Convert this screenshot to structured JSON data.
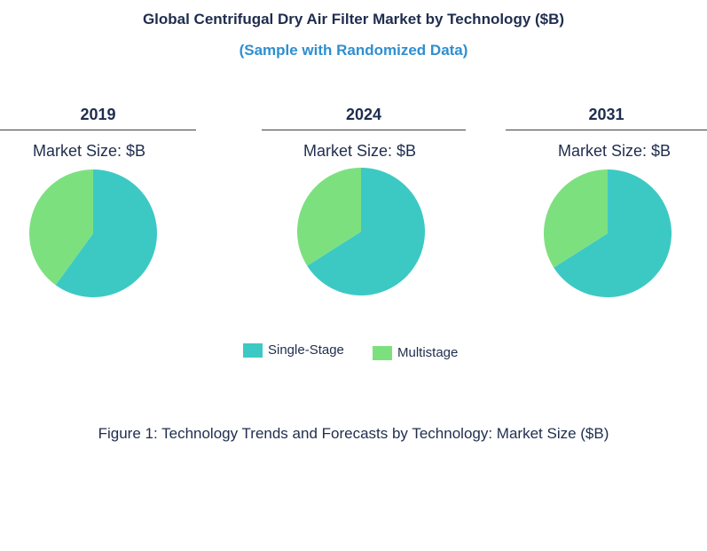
{
  "title": "Global Centrifugal Dry Air Filter Market by Technology ($B)",
  "subtitle": "(Sample with Randomized Data)",
  "caption": "Figure 1: Technology Trends and Forecasts by Technology: Market Size ($B)",
  "colors": {
    "single_stage": "#3cc9c4",
    "multistage": "#7de07f"
  },
  "chart_data": [
    {
      "type": "pie",
      "title": "2019",
      "subtitle": "Market Size: $B",
      "labels": [
        "Single-Stage",
        "Multistage"
      ],
      "values": [
        60,
        40
      ]
    },
    {
      "type": "pie",
      "title": "2024",
      "subtitle": "Market Size: $B",
      "labels": [
        "Single-Stage",
        "Multistage"
      ],
      "values": [
        66,
        34
      ]
    },
    {
      "type": "pie",
      "title": "2031",
      "subtitle": "Market Size: $B",
      "labels": [
        "Single-Stage",
        "Multistage"
      ],
      "values": [
        66,
        34
      ]
    }
  ],
  "legend": [
    {
      "label": "Single-Stage"
    },
    {
      "label": "Multistage"
    }
  ]
}
